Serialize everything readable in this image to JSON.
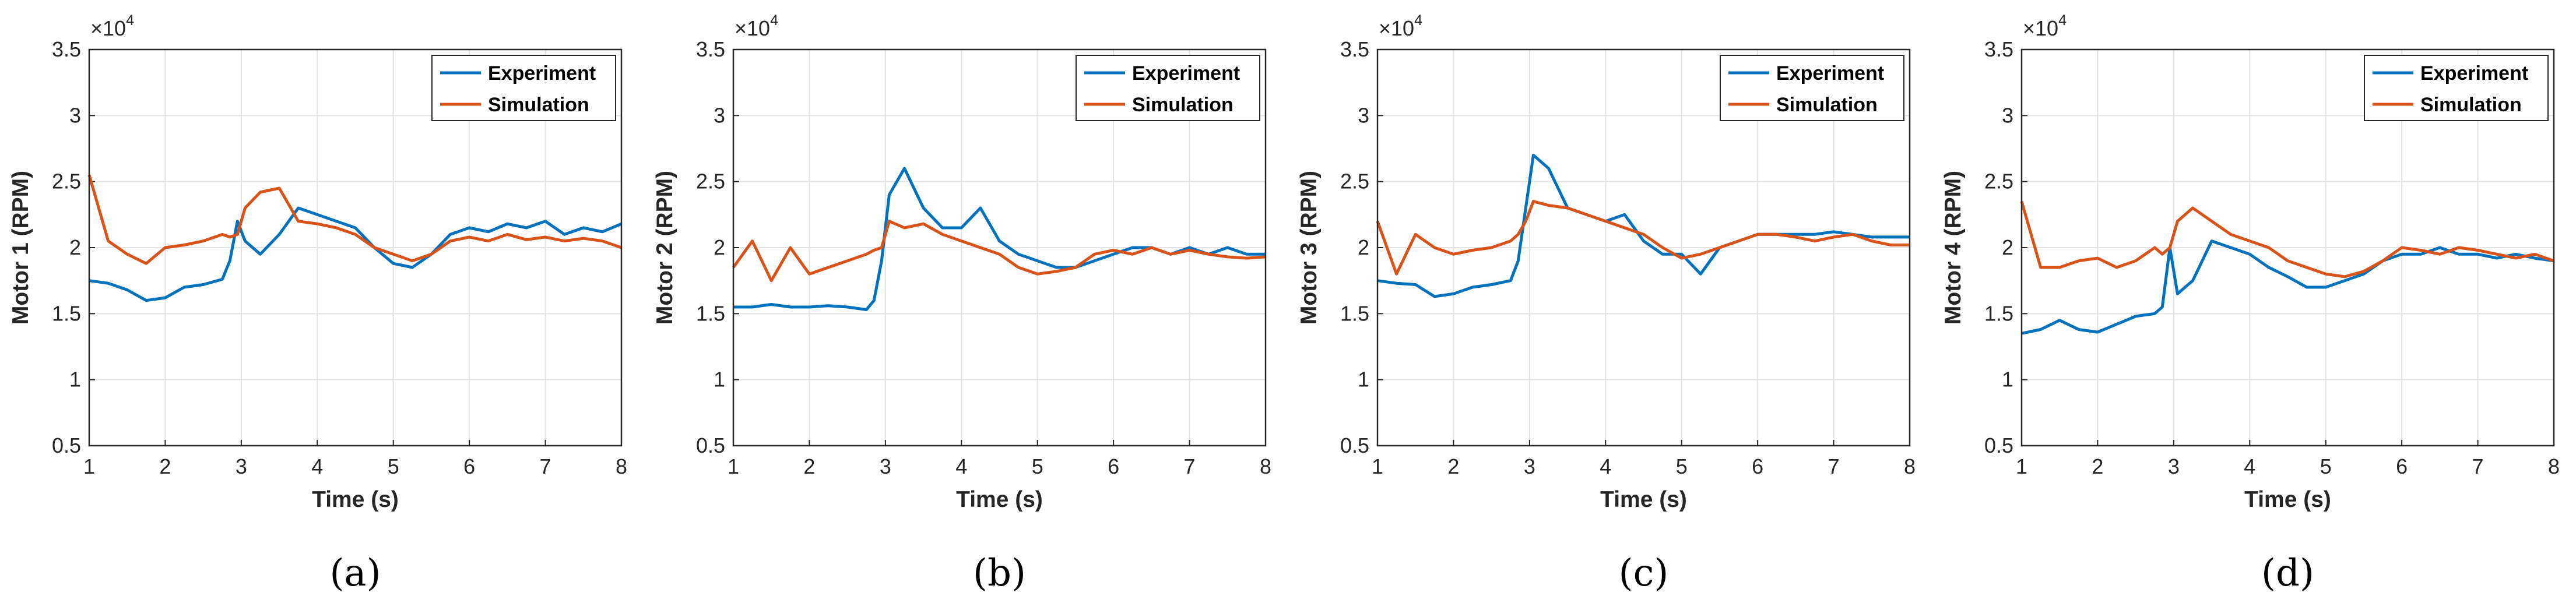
{
  "chart_data": [
    {
      "type": "line",
      "panel": "(a)",
      "xlabel": "Time (s)",
      "ylabel": "Motor 1 (RPM)",
      "y_multiplier": "×10",
      "y_multiplier_exp": "4",
      "xlim": [
        1,
        8
      ],
      "ylim": [
        0.5,
        3.5
      ],
      "xticks": [
        "1",
        "2",
        "3",
        "4",
        "5",
        "6",
        "7",
        "8"
      ],
      "yticks": [
        "0.5",
        "1",
        "1.5",
        "2",
        "2.5",
        "3",
        "3.5"
      ],
      "grid": true,
      "legend": "top-right",
      "x": [
        1.0,
        1.25,
        1.5,
        1.75,
        2.0,
        2.25,
        2.5,
        2.75,
        2.85,
        2.95,
        3.05,
        3.25,
        3.5,
        3.75,
        4.0,
        4.25,
        4.5,
        4.75,
        5.0,
        5.25,
        5.5,
        5.75,
        6.0,
        6.25,
        6.5,
        6.75,
        7.0,
        7.25,
        7.5,
        7.75,
        8.0
      ],
      "series": [
        {
          "name": "Experiment",
          "color": "#0072BD",
          "values": [
            1.75,
            1.73,
            1.68,
            1.6,
            1.62,
            1.7,
            1.72,
            1.76,
            1.9,
            2.2,
            2.05,
            1.95,
            2.1,
            2.3,
            2.25,
            2.2,
            2.15,
            2.0,
            1.88,
            1.85,
            1.95,
            2.1,
            2.15,
            2.12,
            2.18,
            2.15,
            2.2,
            2.1,
            2.15,
            2.12,
            2.18
          ]
        },
        {
          "name": "Simulation",
          "color": "#D95319",
          "values": [
            2.55,
            2.05,
            1.95,
            1.88,
            2.0,
            2.02,
            2.05,
            2.1,
            2.08,
            2.1,
            2.3,
            2.42,
            2.45,
            2.2,
            2.18,
            2.15,
            2.1,
            2.0,
            1.95,
            1.9,
            1.95,
            2.05,
            2.08,
            2.05,
            2.1,
            2.06,
            2.08,
            2.05,
            2.07,
            2.05,
            2.0
          ]
        }
      ]
    },
    {
      "type": "line",
      "panel": "(b)",
      "xlabel": "Time (s)",
      "ylabel": "Motor 2 (RPM)",
      "y_multiplier": "×10",
      "y_multiplier_exp": "4",
      "xlim": [
        1,
        8
      ],
      "ylim": [
        0.5,
        3.5
      ],
      "xticks": [
        "1",
        "2",
        "3",
        "4",
        "5",
        "6",
        "7",
        "8"
      ],
      "yticks": [
        "0.5",
        "1",
        "1.5",
        "2",
        "2.5",
        "3",
        "3.5"
      ],
      "grid": true,
      "legend": "top-right",
      "x": [
        1.0,
        1.25,
        1.5,
        1.75,
        2.0,
        2.25,
        2.5,
        2.75,
        2.85,
        2.95,
        3.05,
        3.25,
        3.5,
        3.75,
        4.0,
        4.25,
        4.5,
        4.75,
        5.0,
        5.25,
        5.5,
        5.75,
        6.0,
        6.25,
        6.5,
        6.75,
        7.0,
        7.25,
        7.5,
        7.75,
        8.0
      ],
      "series": [
        {
          "name": "Experiment",
          "color": "#0072BD",
          "values": [
            1.55,
            1.55,
            1.57,
            1.55,
            1.55,
            1.56,
            1.55,
            1.53,
            1.6,
            1.9,
            2.4,
            2.6,
            2.3,
            2.15,
            2.15,
            2.3,
            2.05,
            1.95,
            1.9,
            1.85,
            1.85,
            1.9,
            1.95,
            2.0,
            2.0,
            1.95,
            2.0,
            1.95,
            2.0,
            1.95,
            1.95
          ]
        },
        {
          "name": "Simulation",
          "color": "#D95319",
          "values": [
            1.85,
            2.05,
            1.75,
            2.0,
            1.8,
            1.85,
            1.9,
            1.95,
            1.98,
            2.0,
            2.2,
            2.15,
            2.18,
            2.1,
            2.05,
            2.0,
            1.95,
            1.85,
            1.8,
            1.82,
            1.85,
            1.95,
            1.98,
            1.95,
            2.0,
            1.95,
            1.98,
            1.95,
            1.93,
            1.92,
            1.93
          ]
        }
      ]
    },
    {
      "type": "line",
      "panel": "(c)",
      "xlabel": "Time (s)",
      "ylabel": "Motor 3 (RPM)",
      "y_multiplier": "×10",
      "y_multiplier_exp": "4",
      "xlim": [
        1,
        8
      ],
      "ylim": [
        0.5,
        3.5
      ],
      "xticks": [
        "1",
        "2",
        "3",
        "4",
        "5",
        "6",
        "7",
        "8"
      ],
      "yticks": [
        "0.5",
        "1",
        "1.5",
        "2",
        "2.5",
        "3",
        "3.5"
      ],
      "grid": true,
      "legend": "top-right",
      "x": [
        1.0,
        1.25,
        1.5,
        1.75,
        2.0,
        2.25,
        2.5,
        2.75,
        2.85,
        2.95,
        3.05,
        3.25,
        3.5,
        3.75,
        4.0,
        4.25,
        4.5,
        4.75,
        5.0,
        5.25,
        5.5,
        5.75,
        6.0,
        6.25,
        6.5,
        6.75,
        7.0,
        7.25,
        7.5,
        7.75,
        8.0
      ],
      "series": [
        {
          "name": "Experiment",
          "color": "#0072BD",
          "values": [
            1.75,
            1.73,
            1.72,
            1.63,
            1.65,
            1.7,
            1.72,
            1.75,
            1.9,
            2.3,
            2.7,
            2.6,
            2.3,
            2.25,
            2.2,
            2.25,
            2.05,
            1.95,
            1.95,
            1.8,
            2.0,
            2.05,
            2.1,
            2.1,
            2.1,
            2.1,
            2.12,
            2.1,
            2.08,
            2.08,
            2.08
          ]
        },
        {
          "name": "Simulation",
          "color": "#D95319",
          "values": [
            2.2,
            1.8,
            2.1,
            2.0,
            1.95,
            1.98,
            2.0,
            2.05,
            2.1,
            2.2,
            2.35,
            2.32,
            2.3,
            2.25,
            2.2,
            2.15,
            2.1,
            2.0,
            1.92,
            1.95,
            2.0,
            2.05,
            2.1,
            2.1,
            2.08,
            2.05,
            2.08,
            2.1,
            2.05,
            2.02,
            2.02
          ]
        }
      ]
    },
    {
      "type": "line",
      "panel": "(d)",
      "xlabel": "Time (s)",
      "ylabel": "Motor 4 (RPM)",
      "y_multiplier": "×10",
      "y_multiplier_exp": "4",
      "xlim": [
        1,
        8
      ],
      "ylim": [
        0.5,
        3.5
      ],
      "xticks": [
        "1",
        "2",
        "3",
        "4",
        "5",
        "6",
        "7",
        "8"
      ],
      "yticks": [
        "0.5",
        "1",
        "1.5",
        "2",
        "2.5",
        "3",
        "3.5"
      ],
      "grid": true,
      "legend": "top-right",
      "x": [
        1.0,
        1.25,
        1.5,
        1.75,
        2.0,
        2.25,
        2.5,
        2.75,
        2.85,
        2.95,
        3.05,
        3.25,
        3.5,
        3.75,
        4.0,
        4.25,
        4.5,
        4.75,
        5.0,
        5.25,
        5.5,
        5.75,
        6.0,
        6.25,
        6.5,
        6.75,
        7.0,
        7.25,
        7.5,
        7.75,
        8.0
      ],
      "series": [
        {
          "name": "Experiment",
          "color": "#0072BD",
          "values": [
            1.35,
            1.38,
            1.45,
            1.38,
            1.36,
            1.42,
            1.48,
            1.5,
            1.55,
            2.0,
            1.65,
            1.75,
            2.05,
            2.0,
            1.95,
            1.85,
            1.78,
            1.7,
            1.7,
            1.75,
            1.8,
            1.9,
            1.95,
            1.95,
            2.0,
            1.95,
            1.95,
            1.92,
            1.95,
            1.92,
            1.9
          ]
        },
        {
          "name": "Simulation",
          "color": "#D95319",
          "values": [
            2.35,
            1.85,
            1.85,
            1.9,
            1.92,
            1.85,
            1.9,
            2.0,
            1.95,
            2.0,
            2.2,
            2.3,
            2.2,
            2.1,
            2.05,
            2.0,
            1.9,
            1.85,
            1.8,
            1.78,
            1.82,
            1.9,
            2.0,
            1.98,
            1.95,
            2.0,
            1.98,
            1.95,
            1.92,
            1.95,
            1.9
          ]
        }
      ]
    }
  ]
}
